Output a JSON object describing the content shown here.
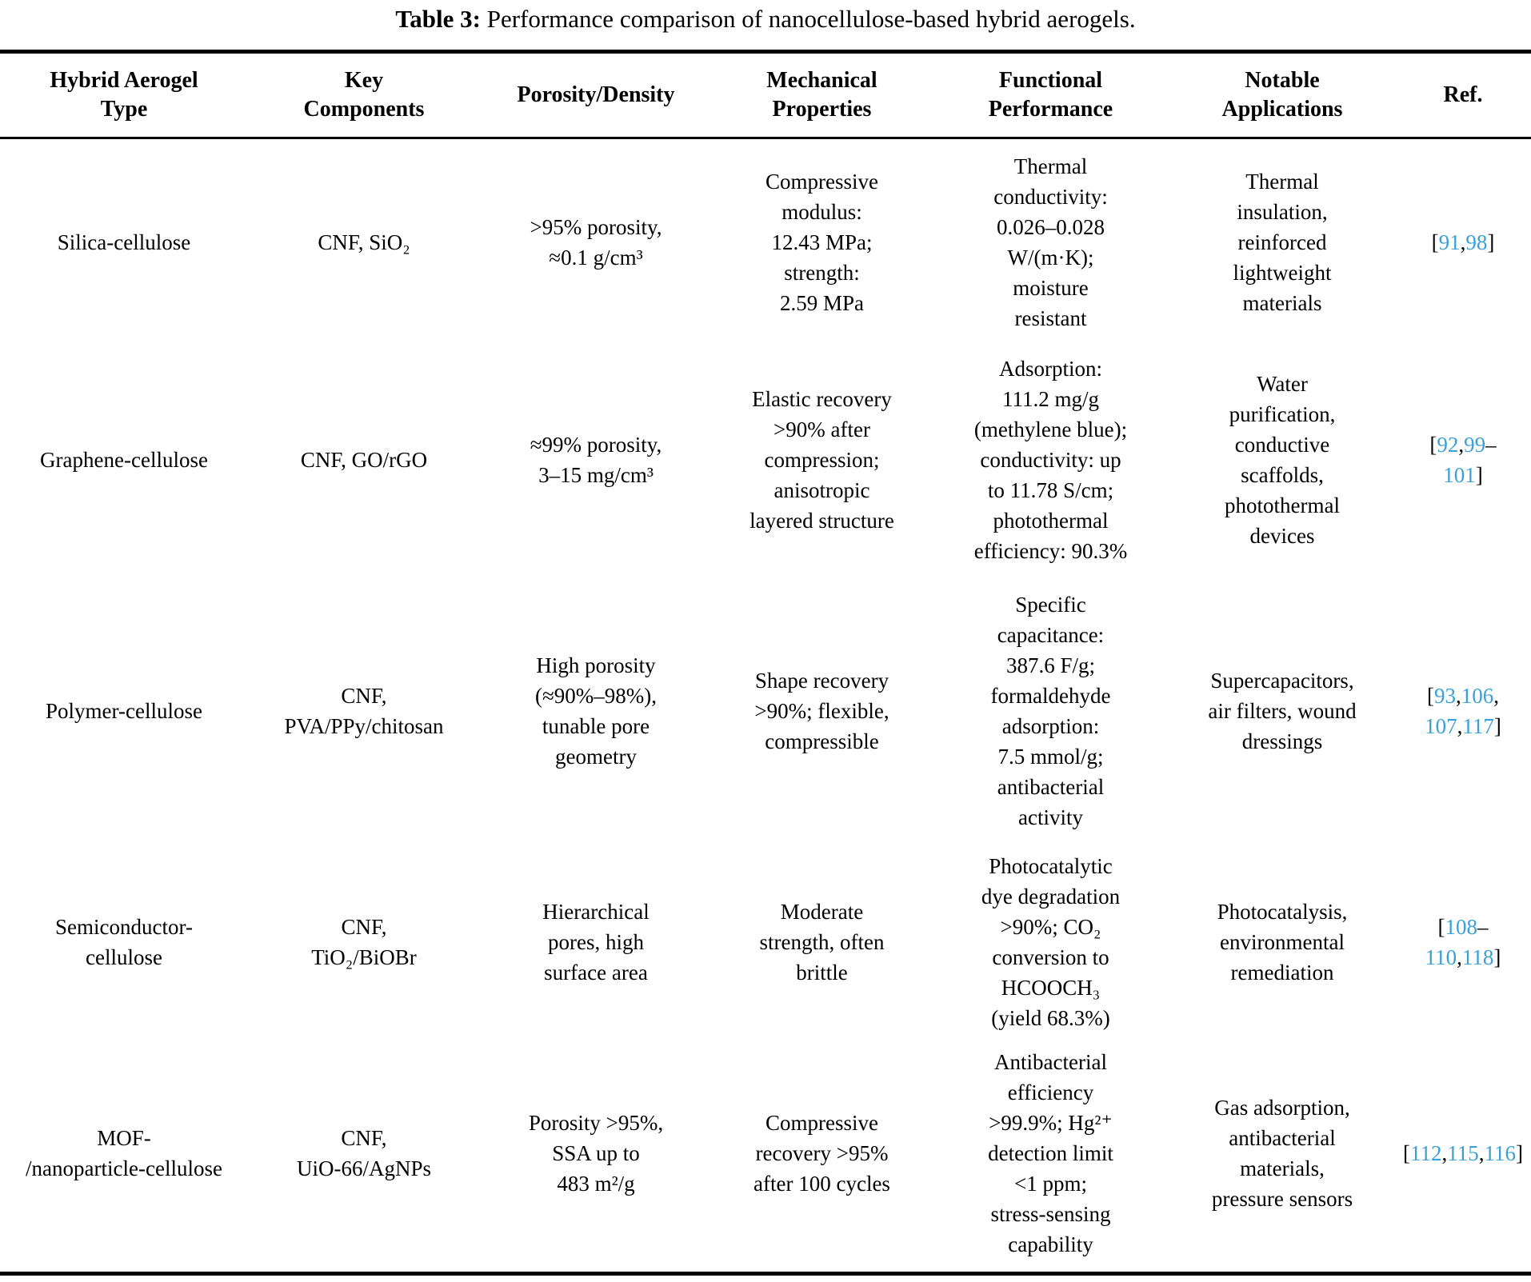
{
  "title": {
    "label": "Table 3:",
    "text": " Performance comparison of nanocellulose-based hybrid aerogels."
  },
  "colors": {
    "citation_link": "#3aa0d9",
    "text": "#000000"
  },
  "table": {
    "headers": [
      "Hybrid Aerogel\nType",
      "Key\nComponents",
      "Porosity/Density",
      "Mechanical\nProperties",
      "Functional\nPerformance",
      "Notable\nApplications",
      "Ref."
    ],
    "rows": [
      {
        "type": "Silica-cellulose",
        "components": "CNF, SiO₂",
        "porosity_density": ">95% porosity,\n≈0.1 g/cm³",
        "mechanical": "Compressive\nmodulus:\n12.43 MPa;\nstrength:\n2.59 MPa",
        "functional": "Thermal\nconductivity:\n0.026–0.028\nW/(m·K);\nmoisture\nresistant",
        "applications": "Thermal\ninsulation,\nreinforced\nlightweight\nmaterials",
        "ref": [
          "[",
          "91",
          ",",
          "98",
          "]"
        ]
      },
      {
        "type": "Graphene-cellulose",
        "components": "CNF, GO/rGO",
        "porosity_density": "≈99% porosity,\n3–15 mg/cm³",
        "mechanical": "Elastic recovery\n>90% after\ncompression;\nanisotropic\nlayered structure",
        "functional": "Adsorption:\n111.2 mg/g\n(methylene blue);\nconductivity: up\nto 11.78 S/cm;\nphotothermal\nefficiency: 90.3%",
        "applications": "Water\npurification,\nconductive\nscaffolds,\nphotothermal\ndevices",
        "ref": [
          "[",
          "92",
          ",",
          "99",
          "–\n",
          "101",
          "]"
        ]
      },
      {
        "type": "Polymer-cellulose",
        "components": "CNF,\nPVA/PPy/chitosan",
        "porosity_density": "High porosity\n(≈90%–98%),\ntunable pore\ngeometry",
        "mechanical": "Shape recovery\n>90%; flexible,\ncompressible",
        "functional": "Specific\ncapacitance:\n387.6 F/g;\nformaldehyde\nadsorption:\n7.5 mmol/g;\nantibacterial\nactivity",
        "applications": "Supercapacitors,\nair filters, wound\ndressings",
        "ref": [
          "[",
          "93",
          ",",
          "106",
          ",\n",
          "107",
          ",",
          "117",
          "]"
        ]
      },
      {
        "type": "Semiconductor-\ncellulose",
        "components": "CNF,\nTiO₂/BiOBr",
        "porosity_density": "Hierarchical\npores, high\nsurface area",
        "mechanical": "Moderate\nstrength, often\nbrittle",
        "functional": "Photocatalytic\ndye degradation\n>90%; CO₂\nconversion to\nHCOOCH₃\n(yield 68.3%)",
        "applications": "Photocatalysis,\nenvironmental\nremediation",
        "ref": [
          "[",
          "108",
          "–\n",
          "110",
          ",",
          "118",
          "]"
        ]
      },
      {
        "type": "MOF-\n/nanoparticle-cellulose",
        "components": "CNF,\nUiO-66/AgNPs",
        "porosity_density": "Porosity >95%,\nSSA up to\n483 m²/g",
        "mechanical": "Compressive\nrecovery >95%\nafter 100 cycles",
        "functional": "Antibacterial\nefficiency\n>99.9%; Hg²⁺\ndetection limit\n<1 ppm;\nstress-sensing\ncapability",
        "applications": "Gas adsorption,\nantibacterial\nmaterials,\npressure sensors",
        "ref": [
          "[",
          "112",
          ",",
          "115",
          ",",
          "116",
          "]"
        ]
      }
    ]
  }
}
